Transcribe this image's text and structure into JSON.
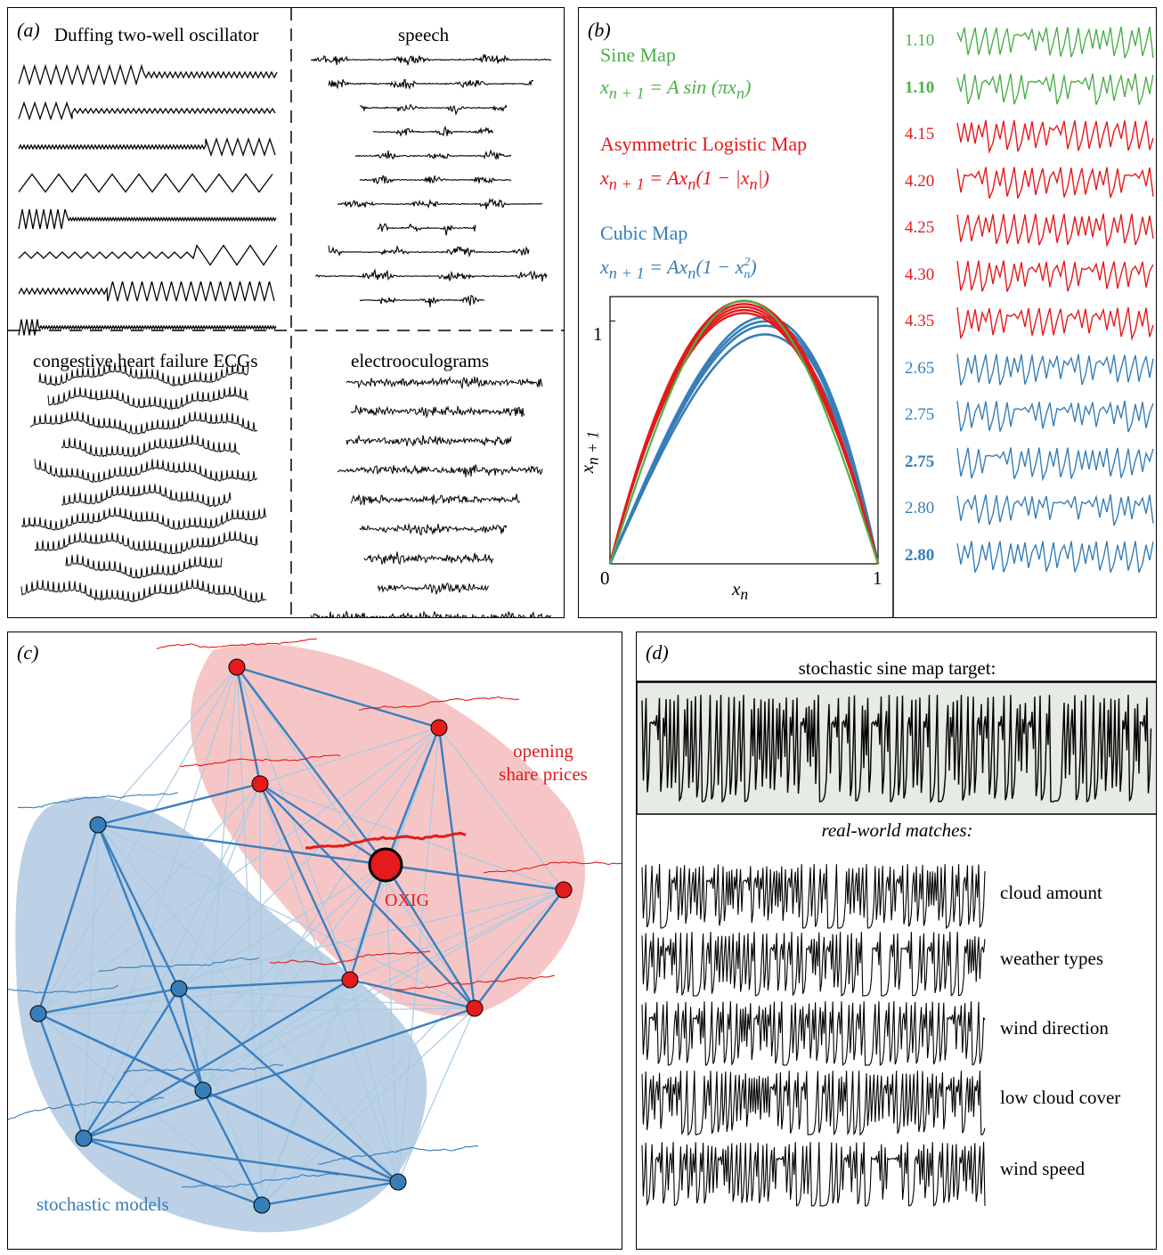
{
  "panel_a": {
    "label": "(a)",
    "groups": [
      {
        "title": "Duffing two-well oscillator"
      },
      {
        "title": "speech"
      },
      {
        "title": "congestive heart failure ECGs"
      },
      {
        "title": "electrooculograms"
      }
    ]
  },
  "panel_b": {
    "label": "(b)",
    "maps": [
      {
        "name": "Sine Map",
        "lhs": "x",
        "lhs_sub": "n + 1",
        "rhs": "= A sin (πx",
        "rhs_sub": "n",
        "rhs_end": ")",
        "color": "#4daf4a"
      },
      {
        "name": "Asymmetric Logistic Map",
        "lhs": "x",
        "lhs_sub": "n + 1",
        "rhs": "= Ax",
        "rhs_sub": "n",
        "rhs_end": "(1 − |x",
        "rhs_sub2": "n",
        "rhs_end2": "|)",
        "color": "#e41a1c"
      },
      {
        "name": "Cubic Map",
        "lhs": "x",
        "lhs_sub": "n + 1",
        "rhs": "= Ax",
        "rhs_sub": "n",
        "rhs_end": "(1 − x",
        "rhs_sub2": "n",
        "rhs_sup2": "2",
        "rhs_end2": ")",
        "color": "#377eb8"
      }
    ],
    "axes": {
      "xlabel_main": "x",
      "xlabel_sub": "n",
      "ylabel_main": "x",
      "ylabel_sub": "n + 1",
      "tick_0": "0",
      "tick_1x": "1",
      "tick_1y": "1"
    },
    "series": [
      {
        "value": "1.10",
        "color": "#4daf4a",
        "bold": false
      },
      {
        "value": "1.10",
        "color": "#4daf4a",
        "bold": true
      },
      {
        "value": "4.15",
        "color": "#e41a1c",
        "bold": false
      },
      {
        "value": "4.20",
        "color": "#e41a1c",
        "bold": false
      },
      {
        "value": "4.25",
        "color": "#e41a1c",
        "bold": false
      },
      {
        "value": "4.30",
        "color": "#e41a1c",
        "bold": false
      },
      {
        "value": "4.35",
        "color": "#e41a1c",
        "bold": false
      },
      {
        "value": "2.65",
        "color": "#377eb8",
        "bold": false
      },
      {
        "value": "2.75",
        "color": "#377eb8",
        "bold": false
      },
      {
        "value": "2.75",
        "color": "#377eb8",
        "bold": true
      },
      {
        "value": "2.80",
        "color": "#377eb8",
        "bold": false
      },
      {
        "value": "2.80",
        "color": "#377eb8",
        "bold": true
      }
    ]
  },
  "panel_c": {
    "label": "(c)",
    "red_group": "opening share prices",
    "blue_group": "stochastic models",
    "hub": "OXIG",
    "colors": {
      "red": "#e41a1c",
      "blue": "#377eb8",
      "red_bg": "#f6c6c6",
      "blue_bg": "#bcd1e6",
      "edge_strong": "#3a7fbf",
      "edge_weak": "#a6cbe3"
    }
  },
  "panel_d": {
    "label": "(d)",
    "target_title": "stochastic sine map target:",
    "matches_title": "real-world matches:",
    "matches": [
      "cloud amount",
      "weather types",
      "wind direction",
      "low cloud cover",
      "wind speed"
    ],
    "target_bg": "#e6ebe4"
  }
}
